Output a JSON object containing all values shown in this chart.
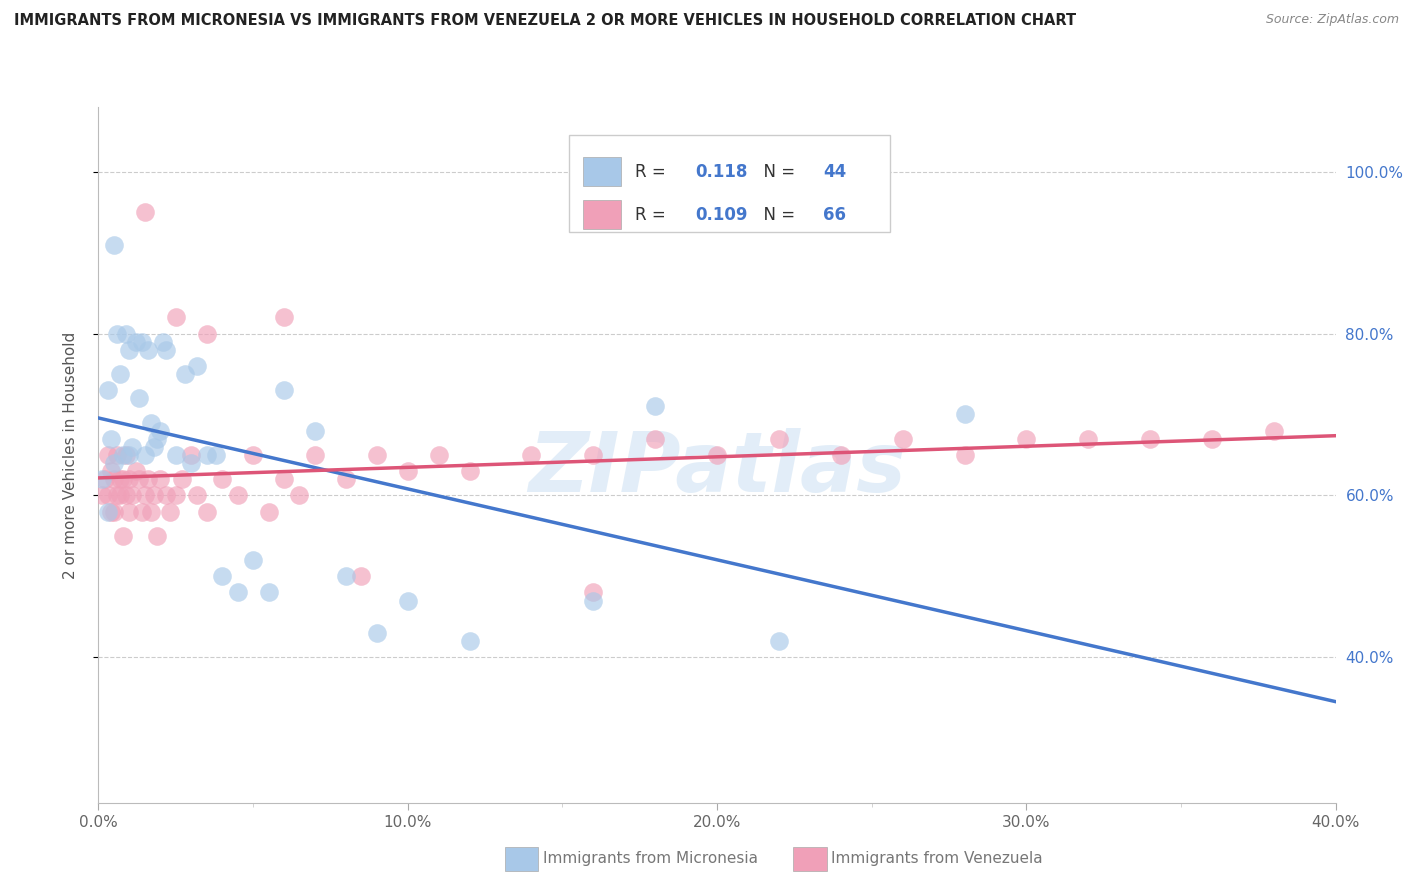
{
  "title": "IMMIGRANTS FROM MICRONESIA VS IMMIGRANTS FROM VENEZUELA 2 OR MORE VEHICLES IN HOUSEHOLD CORRELATION CHART",
  "source": "Source: ZipAtlas.com",
  "ylabel": "2 or more Vehicles in Household",
  "xlabel_micronesia": "Immigrants from Micronesia",
  "xlabel_venezuela": "Immigrants from Venezuela",
  "xlim": [
    0.0,
    0.4
  ],
  "ylim": [
    0.22,
    1.08
  ],
  "xticks": [
    0.0,
    0.05,
    0.1,
    0.15,
    0.2,
    0.25,
    0.3,
    0.35,
    0.4
  ],
  "xticklabels_major": [
    "0.0%",
    "",
    "",
    "",
    "",
    "",
    "",
    "",
    "40.0%"
  ],
  "yticks": [
    0.4,
    0.6,
    0.8,
    1.0
  ],
  "yticklabels": [
    "40.0%",
    "60.0%",
    "80.0%",
    "100.0%"
  ],
  "R_micronesia": 0.118,
  "N_micronesia": 44,
  "R_venezuela": 0.109,
  "N_venezuela": 66,
  "color_micronesia": "#A8C8E8",
  "color_venezuela": "#F0A0B8",
  "line_color_micronesia": "#4477CC",
  "line_color_venezuela": "#DD5577",
  "watermark": "ZIPatlas",
  "micronesia_x": [
    0.001,
    0.003,
    0.003,
    0.004,
    0.005,
    0.005,
    0.006,
    0.007,
    0.008,
    0.009,
    0.01,
    0.01,
    0.011,
    0.012,
    0.013,
    0.014,
    0.015,
    0.016,
    0.017,
    0.018,
    0.019,
    0.02,
    0.021,
    0.022,
    0.025,
    0.028,
    0.03,
    0.032,
    0.035,
    0.038,
    0.04,
    0.045,
    0.05,
    0.055,
    0.06,
    0.07,
    0.08,
    0.09,
    0.1,
    0.12,
    0.16,
    0.18,
    0.22,
    0.28
  ],
  "micronesia_y": [
    0.62,
    0.73,
    0.58,
    0.67,
    0.64,
    0.91,
    0.8,
    0.75,
    0.65,
    0.8,
    0.65,
    0.78,
    0.66,
    0.79,
    0.72,
    0.79,
    0.65,
    0.78,
    0.69,
    0.66,
    0.67,
    0.68,
    0.79,
    0.78,
    0.65,
    0.75,
    0.64,
    0.76,
    0.65,
    0.65,
    0.5,
    0.48,
    0.52,
    0.48,
    0.73,
    0.68,
    0.5,
    0.43,
    0.47,
    0.42,
    0.47,
    0.71,
    0.42,
    0.7
  ],
  "venezuela_x": [
    0.001,
    0.002,
    0.003,
    0.003,
    0.004,
    0.004,
    0.005,
    0.005,
    0.006,
    0.006,
    0.007,
    0.007,
    0.008,
    0.008,
    0.009,
    0.009,
    0.01,
    0.01,
    0.011,
    0.012,
    0.013,
    0.014,
    0.015,
    0.016,
    0.017,
    0.018,
    0.019,
    0.02,
    0.022,
    0.023,
    0.025,
    0.027,
    0.03,
    0.032,
    0.035,
    0.04,
    0.045,
    0.05,
    0.055,
    0.06,
    0.065,
    0.07,
    0.08,
    0.09,
    0.1,
    0.11,
    0.12,
    0.14,
    0.16,
    0.18,
    0.2,
    0.22,
    0.24,
    0.26,
    0.28,
    0.3,
    0.32,
    0.34,
    0.36,
    0.38,
    0.015,
    0.025,
    0.035,
    0.06,
    0.085,
    0.16
  ],
  "venezuela_y": [
    0.6,
    0.62,
    0.6,
    0.65,
    0.58,
    0.63,
    0.62,
    0.58,
    0.6,
    0.65,
    0.6,
    0.62,
    0.55,
    0.62,
    0.6,
    0.65,
    0.58,
    0.62,
    0.6,
    0.63,
    0.62,
    0.58,
    0.6,
    0.62,
    0.58,
    0.6,
    0.55,
    0.62,
    0.6,
    0.58,
    0.6,
    0.62,
    0.65,
    0.6,
    0.58,
    0.62,
    0.6,
    0.65,
    0.58,
    0.62,
    0.6,
    0.65,
    0.62,
    0.65,
    0.63,
    0.65,
    0.63,
    0.65,
    0.65,
    0.67,
    0.65,
    0.67,
    0.65,
    0.67,
    0.65,
    0.67,
    0.67,
    0.67,
    0.67,
    0.68,
    0.95,
    0.82,
    0.8,
    0.82,
    0.5,
    0.48
  ],
  "background_color": "#FFFFFF",
  "grid_color": "#CCCCCC",
  "tick_color": "#AAAAAA"
}
